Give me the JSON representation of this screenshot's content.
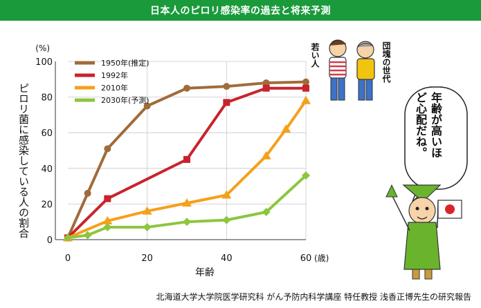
{
  "header": {
    "title": "日本人のピロリ感染率の過去と将来予測"
  },
  "footer": {
    "credit": "北海道大学大学院医学研究科 がん予防内科学講座 特任教授 浅香正博先生の研究報告"
  },
  "illustrations": {
    "young_label": "若い人",
    "boomer_label": "団塊の世代",
    "speech": "年齢が高いほど心配だね。"
  },
  "colors": {
    "title_bg": "#1a9a3b",
    "s1950": "#a06b3a",
    "s1992": "#c8232c",
    "s2010": "#f5a01a",
    "s2030": "#8cc63f"
  },
  "chart_data": {
    "type": "line",
    "title": "日本人のピロリ感染率の過去と将来予測",
    "xlabel": "年齢",
    "ylabel": "ピロリ菌に感染している人の割合",
    "x_unit": "(歳)",
    "y_unit": "(%)",
    "xlim": [
      0,
      60
    ],
    "ylim": [
      0,
      100
    ],
    "xticks": [
      0,
      20,
      40,
      60
    ],
    "yticks": [
      0,
      20,
      40,
      60,
      80,
      100
    ],
    "legend_position": "top-left",
    "series": [
      {
        "name": "1950年(推定)",
        "color": "#a06b3a",
        "marker": "circle",
        "x": [
          0,
          5,
          10,
          20,
          30,
          40,
          50,
          60
        ],
        "y": [
          1,
          26,
          51,
          75,
          85,
          86,
          88,
          88.5
        ]
      },
      {
        "name": "1992年",
        "color": "#c8232c",
        "marker": "square",
        "x": [
          0,
          10,
          30,
          40,
          50,
          60
        ],
        "y": [
          1,
          23,
          45,
          77,
          85,
          85
        ]
      },
      {
        "name": "2010年",
        "color": "#f5a01a",
        "marker": "triangle",
        "x": [
          0,
          10,
          20,
          30,
          40,
          50,
          55,
          60
        ],
        "y": [
          1,
          10.5,
          16,
          20.5,
          25,
          47,
          62,
          78
        ]
      },
      {
        "name": "2030年(予測)",
        "color": "#8cc63f",
        "marker": "diamond",
        "x": [
          0,
          5,
          10,
          20,
          30,
          40,
          50,
          60
        ],
        "y": [
          1,
          2.5,
          7,
          7,
          10,
          11,
          15.5,
          36
        ]
      }
    ]
  }
}
